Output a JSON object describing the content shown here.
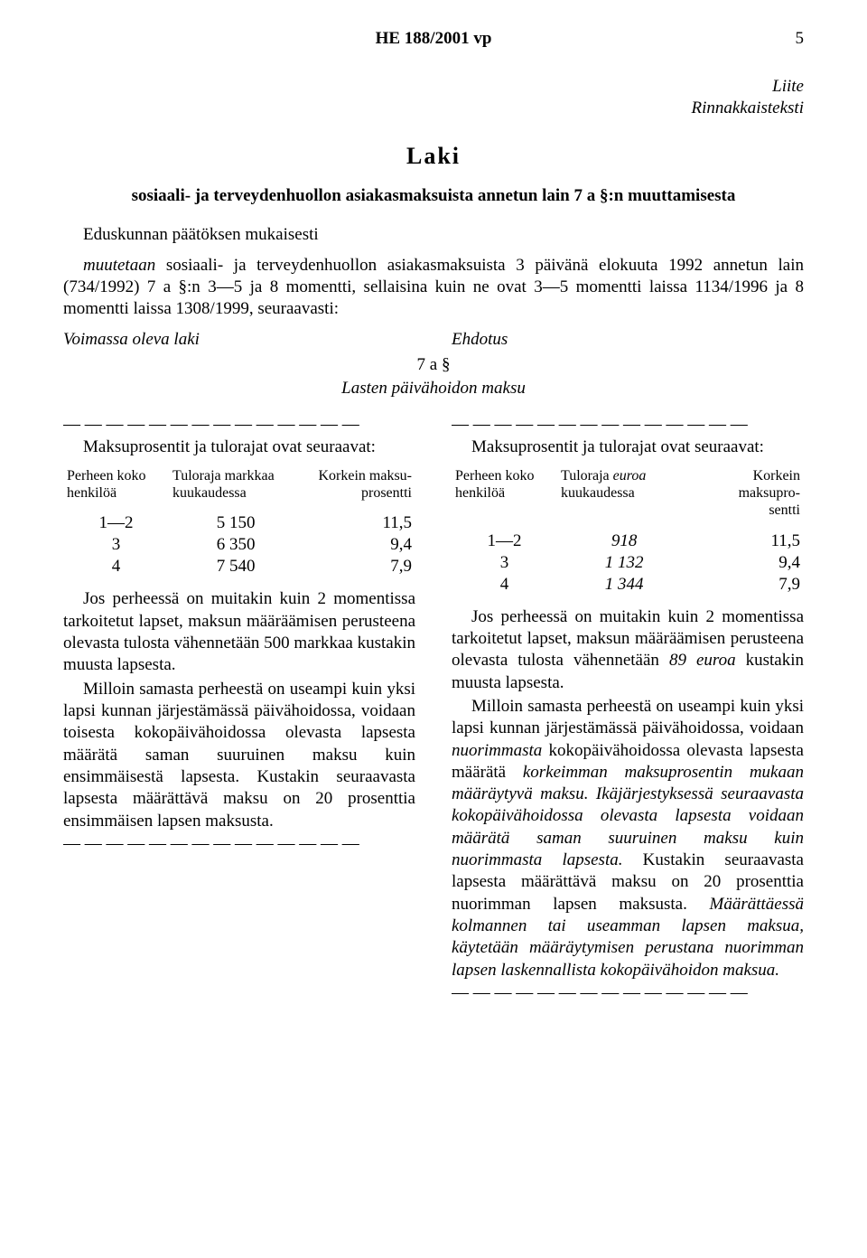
{
  "header": {
    "doc_id": "HE 188/2001 vp",
    "page_number": "5"
  },
  "appendix": {
    "line1": "Liite",
    "line2": "Rinnakkaisteksti"
  },
  "law": {
    "heading": "Laki",
    "title": "sosiaali- ja terveydenhuollon asiakasmaksuista annetun lain 7 a §:n muuttamisesta"
  },
  "intro": {
    "p1": "Eduskunnan päätöksen mukaisesti",
    "p2_pre": "muutetaan ",
    "p2_rest": "sosiaali- ja terveydenhuollon asiakasmaksuista 3 päivänä elokuuta 1992 annetun lain (734/1992) 7 a §:n 3—5 ja 8 momentti, sellaisina kuin ne ovat 3—5 momentti laissa 1134/1996 ja 8 momentti laissa 1308/1999, seuraavasti:"
  },
  "cols_heading": {
    "left": "Voimassa oleva laki",
    "right": "Ehdotus"
  },
  "section": {
    "num": "7 a §",
    "name": "Lasten päivähoidon maksu"
  },
  "dash_line": "— — — — — — — — — — — — — —",
  "left": {
    "lead": "Maksuprosentit ja tulorajat ovat seuraavat:",
    "table": {
      "headers": {
        "c1a": "Perheen koko",
        "c1b": "henkilöä",
        "c2a": "Tuloraja markkaa",
        "c2b": "kuukaudessa",
        "c3a": "Korkein maksu-",
        "c3b": "prosentti"
      },
      "rows": [
        {
          "c1": "1—2",
          "c2": "5 150",
          "c3": "11,5"
        },
        {
          "c1": "3",
          "c2": "6 350",
          "c3": "9,4"
        },
        {
          "c1": "4",
          "c2": "7 540",
          "c3": "7,9"
        }
      ]
    },
    "p1": "Jos perheessä on muitakin kuin 2 momentissa tarkoitetut lapset, maksun määräämisen perusteena olevasta tulosta vähennetään 500 markkaa kustakin muusta lapsesta.",
    "p2": "Milloin samasta perheestä on useampi kuin yksi lapsi kunnan järjestämässä päivähoidossa, voidaan toisesta kokopäivähoidossa olevasta lapsesta määrätä saman suuruinen maksu kuin ensimmäisestä lapsesta. Kustakin seuraavasta lapsesta määrättävä maksu on 20 prosenttia ensimmäisen lapsen maksusta."
  },
  "right": {
    "lead": "Maksuprosentit ja tulorajat ovat seuraavat:",
    "table": {
      "headers": {
        "c1a": "Perheen koko",
        "c1b": "henkilöä",
        "c2a_pre": "Tuloraja ",
        "c2a_it": "euroa",
        "c2b": "kuukaudessa",
        "c3a": "Korkein maksupro-",
        "c3b": "sentti"
      },
      "rows": [
        {
          "c1": "1—2",
          "c2": "918",
          "c3": "11,5"
        },
        {
          "c1": "3",
          "c2": "1 132",
          "c3": "9,4"
        },
        {
          "c1": "4",
          "c2": "1 344",
          "c3": "7,9"
        }
      ]
    },
    "p1_a": "Jos perheessä on muitakin kuin 2 momentissa tarkoitetut lapset, maksun määräämisen perusteena olevasta tulosta vähennetään ",
    "p1_it": "89 euroa",
    "p1_b": " kustakin muusta lapsesta.",
    "p2_a": "Milloin samasta perheestä on useampi kuin yksi lapsi kunnan järjestämässä päivähoidossa, voidaan ",
    "p2_it1": "nuorimmasta",
    "p2_b": " kokopäivähoidossa olevasta lapsesta määrätä ",
    "p2_it2": "korkeimman maksuprosentin mukaan määräytyvä maksu. Ikäjärjestyksessä seuraavasta kokopäivähoidossa olevasta lapsesta voidaan määrätä saman suuruinen maksu kuin nuorimmasta lapsesta.",
    "p2_c": " Kustakin seuraavasta lapsesta määrättävä maksu on 20 prosenttia nuorimman lapsen maksusta. ",
    "p2_it3": "Määrättäessä kolmannen tai useamman lapsen maksua, käytetään määräytymisen perustana nuorimman lapsen laskennallista kokopäivähoidon maksua."
  }
}
